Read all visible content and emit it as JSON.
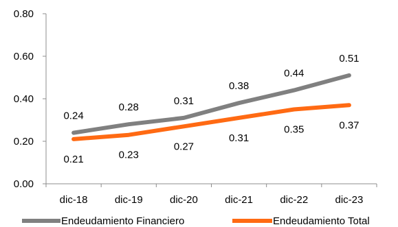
{
  "chart_data": {
    "type": "line",
    "categories": [
      "dic-18",
      "dic-19",
      "dic-20",
      "dic-21",
      "dic-22",
      "dic-23"
    ],
    "ylim": [
      0.0,
      0.8
    ],
    "yticks": [
      "0.00",
      "0.20",
      "0.40",
      "0.60",
      "0.80"
    ],
    "grid": false,
    "legend": "bottom",
    "series": [
      {
        "name": "Endeudamiento Financiero",
        "color": "#808080",
        "values": [
          0.24,
          0.28,
          0.31,
          0.38,
          0.44,
          0.51
        ],
        "labels": [
          "0.24",
          "0.28",
          "0.31",
          "0.38",
          "0.44",
          "0.51"
        ]
      },
      {
        "name": "Endeudamiento Total",
        "color": "#FF6A13",
        "values": [
          0.21,
          0.23,
          0.27,
          0.31,
          0.35,
          0.37
        ],
        "labels": [
          "0.21",
          "0.23",
          "0.27",
          "0.31",
          "0.35",
          "0.37"
        ]
      }
    ]
  }
}
